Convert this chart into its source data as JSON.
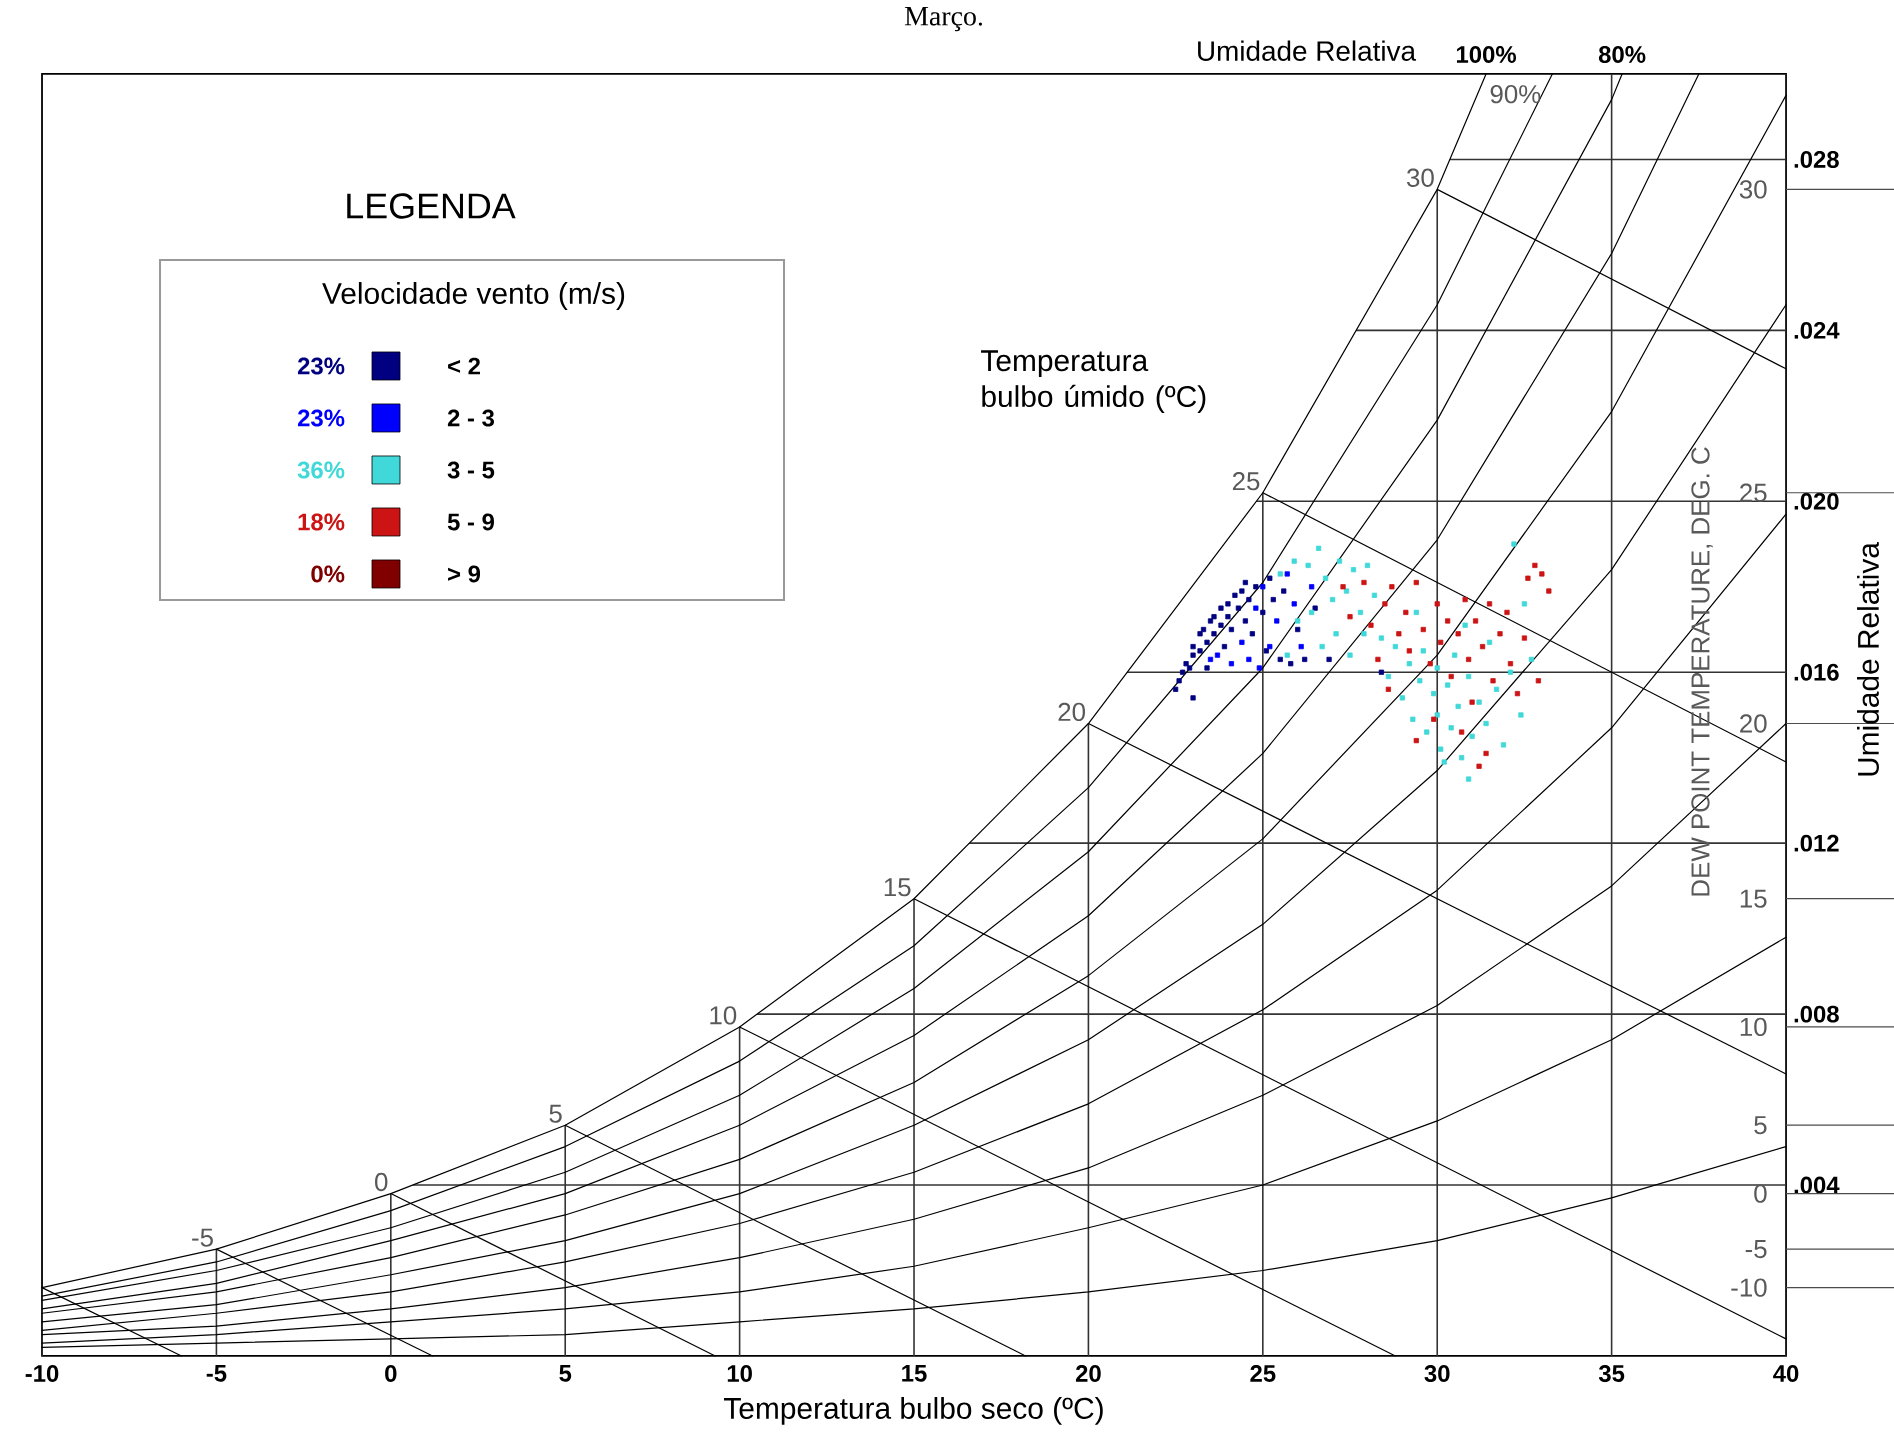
{
  "chart_data": {
    "type": "scatter",
    "title": "Março.",
    "xlabel": "Temperatura bulbo seco (ºC)",
    "ylabel": "Umidade Relativa",
    "y2label": "DEW POINT TEMPERATURE, DEG. C",
    "legend_title": "Velocidade vento (m/s)",
    "legend": "top left",
    "grid": true,
    "xlim": [
      -10,
      40
    ],
    "ylim": [
      0,
      0.03
    ],
    "xticks": [
      -10,
      -5,
      0,
      5,
      10,
      15,
      20,
      25,
      30,
      35,
      40
    ],
    "yticks": [
      {
        "value": 0.004,
        "label": ".004"
      },
      {
        "value": 0.008,
        "label": ".008"
      },
      {
        "value": 0.012,
        "label": ".012"
      },
      {
        "value": 0.016,
        "label": ".016"
      },
      {
        "value": 0.02,
        "label": ".020"
      },
      {
        "value": 0.024,
        "label": ".024"
      },
      {
        "value": 0.028,
        "label": ".028"
      }
    ],
    "annotations": [
      "Umidade Relativa",
      "LEGENDA",
      "Temperatura bulbo úmido (ºC)",
      "23%",
      "23%",
      "36%",
      "18%",
      "0%",
      {
        "text": "30",
        "x": 30,
        "y": 0.0273
      },
      {
        "text": "25",
        "x": 25,
        "y": 0.0202
      },
      {
        "text": "20",
        "x": 20,
        "y": 0.0148
      },
      {
        "text": "15",
        "x": 15,
        "y": 0.0107
      },
      {
        "text": "10",
        "x": 10,
        "y": 0.0077
      },
      {
        "text": "5",
        "x": 5,
        "y": 0.0054
      },
      {
        "text": "0",
        "x": 0,
        "y": 0.0038
      },
      {
        "text": "-5",
        "x": -5,
        "y": 0.0025
      },
      "-10",
      "-5",
      "0",
      "5",
      "10",
      "15",
      "20",
      "25",
      "30"
    ],
    "series": [
      {
        "type": "line",
        "name": "100%",
        "color": "#000000",
        "x": [
          -10,
          -5,
          0,
          5,
          10,
          15,
          20,
          25,
          30,
          31.4
        ],
        "values": [
          0.0016,
          0.0025,
          0.0038,
          0.0054,
          0.0077,
          0.0107,
          0.0148,
          0.0202,
          0.0273,
          0.03
        ]
      },
      {
        "type": "line",
        "name": "90%",
        "color": "#000000",
        "x": [
          -10,
          -5,
          0,
          5,
          10,
          15,
          20,
          25,
          30,
          33.3
        ],
        "values": [
          0.0014,
          0.0022,
          0.0034,
          0.0049,
          0.0069,
          0.0096,
          0.0133,
          0.0181,
          0.0246,
          0.03
        ]
      },
      {
        "type": "line",
        "name": "80%",
        "color": "#000000",
        "x": [
          -10,
          -5,
          0,
          5,
          10,
          15,
          20,
          25,
          30,
          35,
          35.3
        ],
        "values": [
          0.0013,
          0.002,
          0.003,
          0.0043,
          0.0061,
          0.0086,
          0.0118,
          0.0161,
          0.0219,
          0.0294,
          0.03
        ]
      },
      {
        "type": "line",
        "color": "#000000",
        "x": [
          -10,
          -5,
          0,
          5,
          10,
          15,
          20,
          25,
          30,
          35,
          37.5
        ],
        "values": [
          0.0011,
          0.0017,
          0.0027,
          0.0038,
          0.0054,
          0.0075,
          0.0103,
          0.0141,
          0.0191,
          0.0258,
          0.03
        ]
      },
      {
        "type": "line",
        "color": "#000000",
        "x": [
          -10,
          -5,
          0,
          5,
          10,
          15,
          20,
          25,
          30,
          35,
          40
        ],
        "values": [
          0.001,
          0.0015,
          0.0023,
          0.0033,
          0.0046,
          0.0064,
          0.0089,
          0.0121,
          0.0164,
          0.0221,
          0.0295
        ]
      },
      {
        "type": "line",
        "color": "#000000",
        "x": [
          -10,
          -5,
          0,
          5,
          10,
          15,
          20,
          25,
          30,
          35,
          40
        ],
        "values": [
          0.0008,
          0.0012,
          0.0019,
          0.0027,
          0.0038,
          0.0054,
          0.0074,
          0.0101,
          0.0137,
          0.0184,
          0.0246
        ]
      },
      {
        "type": "line",
        "color": "#000000",
        "x": [
          -10,
          -5,
          0,
          5,
          10,
          15,
          20,
          25,
          30,
          35,
          40
        ],
        "values": [
          0.0006,
          0.001,
          0.0015,
          0.0022,
          0.0031,
          0.0043,
          0.0059,
          0.0081,
          0.0109,
          0.0147,
          0.0197
        ]
      },
      {
        "type": "line",
        "color": "#000000",
        "x": [
          -10,
          -5,
          0,
          5,
          10,
          15,
          20,
          25,
          30,
          35,
          40
        ],
        "values": [
          0.0005,
          0.0007,
          0.0011,
          0.0016,
          0.0023,
          0.0032,
          0.0044,
          0.0061,
          0.0082,
          0.011,
          0.0148
        ]
      },
      {
        "type": "line",
        "color": "#000000",
        "x": [
          -10,
          -5,
          0,
          5,
          10,
          15,
          20,
          25,
          30,
          35,
          40
        ],
        "values": [
          0.0003,
          0.0005,
          0.0008,
          0.0011,
          0.0015,
          0.0021,
          0.003,
          0.004,
          0.0055,
          0.0074,
          0.0098
        ]
      },
      {
        "type": "line",
        "color": "#000000",
        "x": [
          -10,
          -5,
          0,
          5,
          10,
          15,
          20,
          25,
          30,
          35,
          40
        ],
        "values": [
          0.0002,
          0.0003,
          0.0004,
          0.0005,
          0.0008,
          0.0011,
          0.0015,
          0.002,
          0.0027,
          0.0037,
          0.0049
        ]
      },
      {
        "type": "line",
        "color": "#000000",
        "x": [
          30,
          40
        ],
        "values": [
          0.0273,
          0.0231
        ]
      },
      {
        "type": "line",
        "color": "#000000",
        "x": [
          25,
          40
        ],
        "values": [
          0.0202,
          0.0139
        ]
      },
      {
        "type": "line",
        "color": "#000000",
        "x": [
          20,
          40
        ],
        "values": [
          0.0148,
          0.0066
        ]
      },
      {
        "type": "line",
        "color": "#000000",
        "x": [
          15,
          40
        ],
        "values": [
          0.0107,
          0.0004
        ]
      },
      {
        "type": "line",
        "color": "#000000",
        "x": [
          10,
          28.8
        ],
        "values": [
          0.0077,
          0
        ]
      },
      {
        "type": "line",
        "color": "#000000",
        "x": [
          5,
          18.2
        ],
        "values": [
          0.0054,
          0
        ]
      },
      {
        "type": "line",
        "color": "#000000",
        "x": [
          0,
          9.3
        ],
        "values": [
          0.0038,
          0
        ]
      },
      {
        "type": "line",
        "color": "#000000",
        "x": [
          -5,
          1.2
        ],
        "values": [
          0.0025,
          0
        ]
      },
      {
        "type": "line",
        "color": "#000000",
        "x": [
          -10,
          -6
        ],
        "values": [
          0.0016,
          0
        ]
      },
      {
        "name": "< 2",
        "marker": "square",
        "color": "#000080",
        "x": [
          22.5,
          22.6,
          22.7,
          22.8,
          22.9,
          23.0,
          23.0,
          23.2,
          23.2,
          23.3,
          23.4,
          23.5,
          23.6,
          23.6,
          23.8,
          23.8,
          23.9,
          24.0,
          24.0,
          24.1,
          24.2,
          24.3,
          24.4,
          24.5,
          24.5,
          24.6,
          24.7,
          24.8,
          25.0,
          25.1,
          25.2,
          25.3,
          25.5,
          25.6,
          25.8,
          26.0,
          26.2,
          26.5,
          23.4,
          23.0,
          26.9,
          28.4
        ],
        "values": [
          0.0156,
          0.0158,
          0.016,
          0.0162,
          0.0161,
          0.0164,
          0.0166,
          0.0165,
          0.0169,
          0.017,
          0.0167,
          0.0172,
          0.0169,
          0.0173,
          0.0175,
          0.0171,
          0.0166,
          0.0176,
          0.0173,
          0.017,
          0.0178,
          0.0175,
          0.0179,
          0.0181,
          0.0172,
          0.0177,
          0.0169,
          0.018,
          0.0174,
          0.0165,
          0.0182,
          0.0177,
          0.0163,
          0.0179,
          0.0162,
          0.017,
          0.0163,
          0.0175,
          0.0161,
          0.0154,
          0.0163,
          0.016
        ]
      },
      {
        "name": "2 - 3",
        "marker": "square",
        "color": "#0000ff",
        "x": [
          23.7,
          24.1,
          24.4,
          24.8,
          25.0,
          25.4,
          25.7,
          25.9,
          26.1,
          24.6,
          25.2,
          26.4,
          23.5,
          24.9
        ],
        "values": [
          0.0164,
          0.0162,
          0.0167,
          0.0175,
          0.018,
          0.0172,
          0.0183,
          0.0176,
          0.0166,
          0.0163,
          0.0166,
          0.018,
          0.0163,
          0.0161
        ]
      },
      {
        "name": "3 - 5",
        "marker": "square",
        "color": "#40d8d8",
        "x": [
          25.5,
          25.9,
          26.3,
          26.6,
          26.8,
          27.0,
          27.2,
          27.4,
          27.6,
          27.8,
          26.4,
          26.7,
          27.1,
          27.5,
          27.9,
          28.2,
          28.4,
          28.6,
          28.8,
          29.0,
          29.2,
          29.3,
          29.5,
          29.6,
          29.7,
          29.9,
          30.0,
          30.0,
          30.1,
          30.2,
          30.3,
          30.4,
          30.5,
          30.6,
          30.7,
          30.9,
          31.0,
          31.2,
          31.4,
          31.5,
          31.7,
          31.9,
          32.1,
          32.4,
          32.7,
          32.2,
          32.5,
          28.0,
          26.0,
          25.7,
          29.4,
          30.8,
          30.9
        ],
        "values": [
          0.0183,
          0.0186,
          0.0185,
          0.0189,
          0.0182,
          0.0177,
          0.0186,
          0.0179,
          0.0184,
          0.0174,
          0.0174,
          0.0166,
          0.0169,
          0.0164,
          0.0169,
          0.0178,
          0.0168,
          0.0159,
          0.0166,
          0.0154,
          0.0162,
          0.0149,
          0.0158,
          0.0165,
          0.0146,
          0.0155,
          0.015,
          0.0161,
          0.0142,
          0.0139,
          0.0157,
          0.0147,
          0.0164,
          0.0152,
          0.014,
          0.0159,
          0.0145,
          0.0153,
          0.0148,
          0.0167,
          0.0156,
          0.0143,
          0.016,
          0.015,
          0.0163,
          0.019,
          0.0176,
          0.0185,
          0.0172,
          0.0164,
          0.0174,
          0.0171,
          0.0135
        ]
      },
      {
        "name": "5 - 9",
        "marker": "square",
        "color": "#cc1414",
        "x": [
          27.5,
          27.9,
          28.1,
          28.3,
          28.5,
          28.7,
          28.9,
          29.1,
          29.2,
          29.4,
          29.6,
          29.8,
          30.0,
          30.1,
          30.3,
          30.4,
          30.6,
          30.8,
          30.9,
          31.0,
          31.1,
          31.3,
          31.5,
          31.6,
          31.8,
          32.0,
          32.1,
          32.3,
          32.5,
          32.6,
          32.8,
          33.0,
          33.2,
          32.9,
          31.4,
          30.7,
          29.4,
          31.2,
          28.6,
          27.3,
          29.9
        ],
        "values": [
          0.0173,
          0.0181,
          0.0171,
          0.0163,
          0.0176,
          0.018,
          0.0169,
          0.0174,
          0.0165,
          0.0181,
          0.017,
          0.0162,
          0.0176,
          0.0167,
          0.0172,
          0.0159,
          0.0169,
          0.0177,
          0.0163,
          0.0153,
          0.0172,
          0.0166,
          0.0176,
          0.0158,
          0.0169,
          0.0174,
          0.0162,
          0.0155,
          0.0168,
          0.0182,
          0.0185,
          0.0183,
          0.0179,
          0.0158,
          0.0141,
          0.0146,
          0.0144,
          0.0138,
          0.0156,
          0.018,
          0.0149
        ]
      },
      {
        "name": "> 9",
        "marker": "square",
        "color": "#800000"
      }
    ]
  }
}
